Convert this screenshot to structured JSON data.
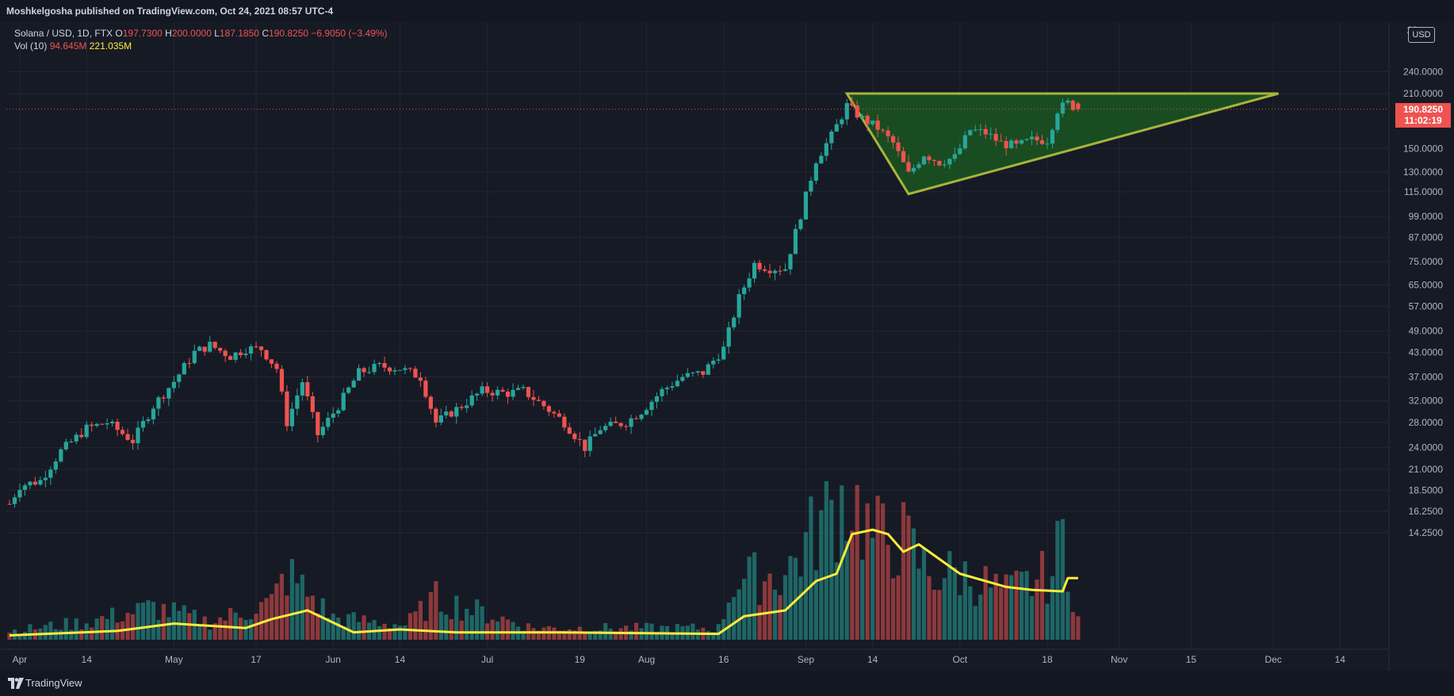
{
  "header": {
    "publisher_text": "Moshkelgosha published on TradingView.com, Oct 24, 2021 08:57 UTC-4"
  },
  "legend": {
    "symbol": "Solana / USD, 1D, FTX",
    "open_label": "O",
    "open": "197.7300",
    "high_label": "H",
    "high": "200.0000",
    "low_label": "L",
    "low": "187.1850",
    "close_label": "C",
    "close": "190.8250",
    "change": "−6.9050 (−3.49%)",
    "vol_label": "Vol (10)",
    "vol_value": "94.645M",
    "vol_ma": "221.035M"
  },
  "price_badge": {
    "price": "190.8250",
    "countdown": "11:02:19"
  },
  "currency": "USD",
  "footer": {
    "brand": "TradingView"
  },
  "colors": {
    "bull": "#26a69a",
    "bear": "#ef5350",
    "volume_ma": "#ffeb3b",
    "triangle_stroke": "#a8b43c",
    "triangle_fill": "#1b5e20",
    "grid": "#22262f",
    "background": "#161a25"
  },
  "chart_data": {
    "type": "candlestick",
    "symbol": "Solana / USD, 1D, FTX",
    "y_scale": "log",
    "ylim": [
      13.5,
      285
    ],
    "price_ticks": [
      "240.0000",
      "210.0000",
      "150.0000",
      "130.0000",
      "115.0000",
      "99.0000",
      "87.0000",
      "75.0000",
      "65.0000",
      "57.0000",
      "49.0000",
      "43.0000",
      "37.0000",
      "32.0000",
      "28.0000",
      "24.0000",
      "21.0000",
      "18.5000",
      "16.2500",
      "14.2500"
    ],
    "top_tick_partial": "28",
    "x_ticks": [
      "Apr",
      "14",
      "May",
      "17",
      "Jun",
      "14",
      "Jul",
      "19",
      "Aug",
      "16",
      "Sep",
      "14",
      "Oct",
      "18",
      "Nov",
      "15",
      "Dec",
      "14"
    ],
    "x_range_days": [
      "2021-03-30",
      "2021-12-20"
    ],
    "anchors": [
      [
        "2021-03-30",
        17.0
      ],
      [
        "2021-04-01",
        19.0
      ],
      [
        "2021-04-05",
        19.6
      ],
      [
        "2021-04-09",
        23.5
      ],
      [
        "2021-04-14",
        27.0
      ],
      [
        "2021-04-18",
        28.0
      ],
      [
        "2021-04-23",
        25.0
      ],
      [
        "2021-04-27",
        31.0
      ],
      [
        "2021-05-01",
        36.0
      ],
      [
        "2021-05-05",
        43.0
      ],
      [
        "2021-05-08",
        45.0
      ],
      [
        "2021-05-12",
        42.0
      ],
      [
        "2021-05-15",
        44.0
      ],
      [
        "2021-05-18",
        44.0
      ],
      [
        "2021-05-21",
        39.0
      ],
      [
        "2021-05-23",
        28.0
      ],
      [
        "2021-05-26",
        36.0
      ],
      [
        "2021-05-29",
        26.0
      ],
      [
        "2021-06-02",
        31.0
      ],
      [
        "2021-06-06",
        38.0
      ],
      [
        "2021-06-10",
        39.5
      ],
      [
        "2021-06-14",
        39.0
      ],
      [
        "2021-06-18",
        37.0
      ],
      [
        "2021-06-21",
        28.0
      ],
      [
        "2021-06-26",
        31.0
      ],
      [
        "2021-06-30",
        34.0
      ],
      [
        "2021-07-05",
        33.5
      ],
      [
        "2021-07-08",
        34.0
      ],
      [
        "2021-07-12",
        31.0
      ],
      [
        "2021-07-16",
        28.0
      ],
      [
        "2021-07-20",
        24.0
      ],
      [
        "2021-07-23",
        27.0
      ],
      [
        "2021-07-28",
        28.0
      ],
      [
        "2021-07-31",
        30.0
      ],
      [
        "2021-08-04",
        34.0
      ],
      [
        "2021-08-08",
        37.0
      ],
      [
        "2021-08-12",
        38.0
      ],
      [
        "2021-08-16",
        44.0
      ],
      [
        "2021-08-19",
        60.0
      ],
      [
        "2021-08-22",
        74.0
      ],
      [
        "2021-08-25",
        72.0
      ],
      [
        "2021-08-28",
        72.0
      ],
      [
        "2021-08-31",
        100.0
      ],
      [
        "2021-09-03",
        140.0
      ],
      [
        "2021-09-06",
        162.0
      ],
      [
        "2021-09-09",
        195.0
      ],
      [
        "2021-09-12",
        180.0
      ],
      [
        "2021-09-15",
        170.0
      ],
      [
        "2021-09-18",
        155.0
      ],
      [
        "2021-09-21",
        128.0
      ],
      [
        "2021-09-24",
        145.0
      ],
      [
        "2021-09-27",
        138.0
      ],
      [
        "2021-09-30",
        142.0
      ],
      [
        "2021-10-03",
        168.0
      ],
      [
        "2021-10-06",
        165.0
      ],
      [
        "2021-10-09",
        155.0
      ],
      [
        "2021-10-12",
        152.0
      ],
      [
        "2021-10-15",
        158.0
      ],
      [
        "2021-10-18",
        158.0
      ],
      [
        "2021-10-20",
        190.0
      ],
      [
        "2021-10-22",
        198.0
      ],
      [
        "2021-10-24",
        190.825
      ]
    ],
    "last_candle": {
      "date": "2021-10-24",
      "open": 197.73,
      "high": 200.0,
      "low": 187.185,
      "close": 190.825
    },
    "current_price": 190.825,
    "annotations": [
      {
        "type": "triangle",
        "points": [
          [
            "2021-09-09",
            210.0
          ],
          [
            "2021-10-30",
            210.0
          ],
          [
            "2021-12-02",
            210.0
          ],
          [
            "2021-09-21",
            113.5
          ]
        ],
        "vertices": [
          [
            "2021-09-09",
            210.0
          ],
          [
            "2021-12-02",
            210.0
          ],
          [
            "2021-09-21",
            113.5
          ]
        ]
      }
    ],
    "volume": {
      "label": "Vol (10)",
      "last": "94.645M",
      "ma": "221.035M",
      "profile": [
        [
          "2021-03-30",
          0.06
        ],
        [
          "2021-04-14",
          0.12
        ],
        [
          "2021-04-27",
          0.22
        ],
        [
          "2021-05-08",
          0.12
        ],
        [
          "2021-05-20",
          0.25
        ],
        [
          "2021-05-23",
          0.45
        ],
        [
          "2021-06-01",
          0.15
        ],
        [
          "2021-06-15",
          0.1
        ],
        [
          "2021-06-21",
          0.28
        ],
        [
          "2021-07-10",
          0.08
        ],
        [
          "2021-08-15",
          0.08
        ],
        [
          "2021-08-18",
          0.4
        ],
        [
          "2021-08-28",
          0.45
        ],
        [
          "2021-09-03",
          0.75
        ],
        [
          "2021-09-09",
          1.0
        ],
        [
          "2021-09-11",
          0.9
        ],
        [
          "2021-09-14",
          0.7
        ],
        [
          "2021-09-20",
          0.68
        ],
        [
          "2021-09-25",
          0.45
        ],
        [
          "2021-10-01",
          0.45
        ],
        [
          "2021-10-10",
          0.32
        ],
        [
          "2021-10-19",
          0.45
        ],
        [
          "2021-10-21",
          0.72
        ],
        [
          "2021-10-24",
          0.15
        ]
      ],
      "ma_profile": [
        [
          "2021-03-30",
          0.03
        ],
        [
          "2021-04-20",
          0.06
        ],
        [
          "2021-05-01",
          0.11
        ],
        [
          "2021-05-15",
          0.08
        ],
        [
          "2021-05-20",
          0.14
        ],
        [
          "2021-05-27",
          0.2
        ],
        [
          "2021-06-05",
          0.05
        ],
        [
          "2021-06-14",
          0.07
        ],
        [
          "2021-06-25",
          0.05
        ],
        [
          "2021-07-15",
          0.05
        ],
        [
          "2021-08-15",
          0.04
        ],
        [
          "2021-08-20",
          0.16
        ],
        [
          "2021-08-28",
          0.2
        ],
        [
          "2021-09-03",
          0.4
        ],
        [
          "2021-09-07",
          0.45
        ],
        [
          "2021-09-10",
          0.72
        ],
        [
          "2021-09-14",
          0.75
        ],
        [
          "2021-09-17",
          0.72
        ],
        [
          "2021-09-20",
          0.6
        ],
        [
          "2021-09-23",
          0.65
        ],
        [
          "2021-10-01",
          0.45
        ],
        [
          "2021-10-10",
          0.36
        ],
        [
          "2021-10-15",
          0.34
        ],
        [
          "2021-10-21",
          0.33
        ],
        [
          "2021-10-22",
          0.42
        ],
        [
          "2021-10-24",
          0.42
        ]
      ]
    }
  }
}
